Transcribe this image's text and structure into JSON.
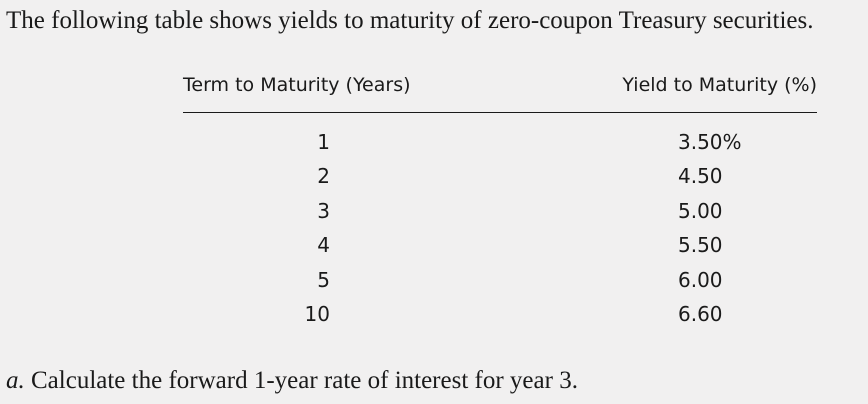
{
  "intro": "The following table shows yields to maturity of zero-coupon Treasury securities.",
  "table": {
    "headers": [
      "Term to Maturity (Years)",
      "Yield to Maturity (%)"
    ],
    "rows": [
      {
        "term": "1",
        "yield": "3.50%"
      },
      {
        "term": "2",
        "yield": "4.50"
      },
      {
        "term": "3",
        "yield": "5.00"
      },
      {
        "term": "4",
        "yield": "5.50"
      },
      {
        "term": "5",
        "yield": "6.00"
      },
      {
        "term": "10",
        "yield": "6.60"
      }
    ]
  },
  "question": {
    "letter": "a.",
    "text": "Calculate the forward 1-year rate of interest for year 3."
  }
}
